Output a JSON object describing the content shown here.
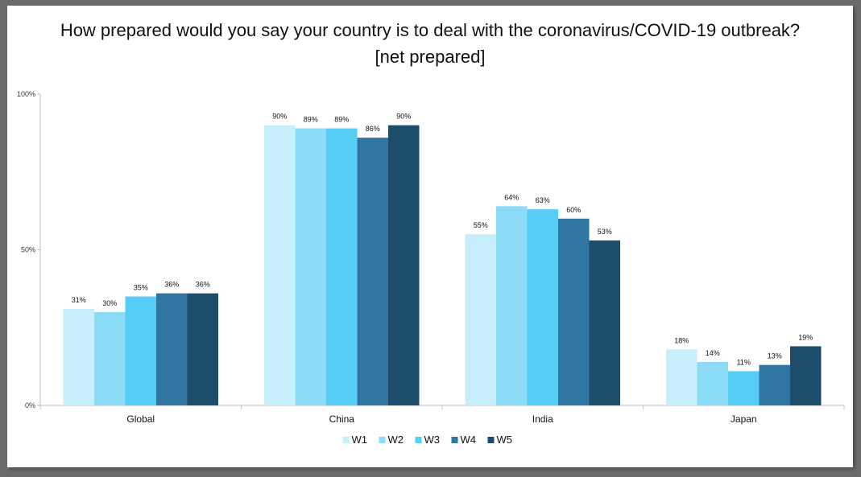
{
  "chart_data": {
    "type": "bar",
    "title": "How prepared would you say your country is to deal with the coronavirus/COVID-19 outbreak?",
    "subtitle": "[net prepared]",
    "categories": [
      "Global",
      "China",
      "India",
      "Japan"
    ],
    "series": [
      {
        "name": "W1",
        "color": "#c6eefb",
        "values": [
          31,
          90,
          55,
          18
        ]
      },
      {
        "name": "W2",
        "color": "#8ddcf7",
        "values": [
          30,
          89,
          64,
          14
        ]
      },
      {
        "name": "W3",
        "color": "#55cdf4",
        "values": [
          35,
          89,
          63,
          11
        ]
      },
      {
        "name": "W4",
        "color": "#2f76a0",
        "values": [
          36,
          86,
          60,
          13
        ]
      },
      {
        "name": "W5",
        "color": "#1e4d6b",
        "values": [
          36,
          90,
          53,
          19
        ]
      }
    ],
    "data_labels": [
      [
        "31%",
        "90%",
        "55%",
        "18%"
      ],
      [
        "30%",
        "89%",
        "64%",
        "14%"
      ],
      [
        "35%",
        "89%",
        "63%",
        "11%"
      ],
      [
        "36%",
        "86%",
        "60%",
        "13%"
      ],
      [
        "36%",
        "90%",
        "53%",
        "19%"
      ]
    ],
    "yticks": [
      {
        "value": 0,
        "label": "0%"
      },
      {
        "value": 50,
        "label": "50%"
      },
      {
        "value": 100,
        "label": "100%"
      }
    ],
    "ylim": [
      0,
      100
    ],
    "xlabel": "",
    "ylabel": "",
    "grid": false,
    "legend_position": "bottom"
  }
}
